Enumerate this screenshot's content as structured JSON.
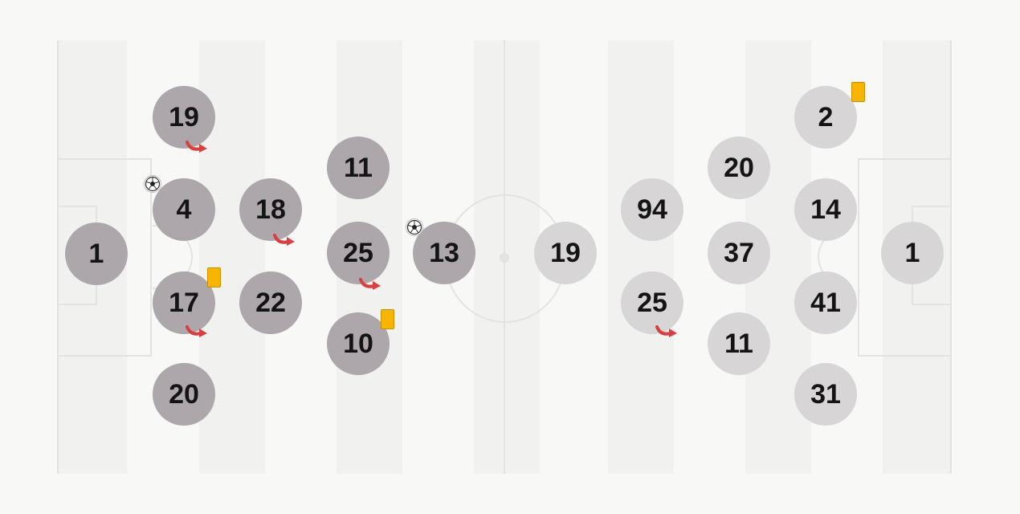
{
  "colors": {
    "home": "#ada6ab",
    "away": "#d7d5d6",
    "card": "#f7b500",
    "sub_arrow": "#e0393b",
    "pitch_stripe": "#f1f1f0",
    "pitch_line": "#e3e3e2"
  },
  "icons": {
    "card": "yellow-card-icon",
    "goal": "soccer-ball-icon",
    "substitution": "substitution-arrow-icon"
  },
  "home_team": {
    "players": [
      {
        "id": "h-1",
        "number": "1"
      },
      {
        "id": "h-19",
        "number": "19",
        "substituted": true
      },
      {
        "id": "h-4",
        "number": "4",
        "goal": true
      },
      {
        "id": "h-17",
        "number": "17",
        "substituted": true,
        "yellow_card": true
      },
      {
        "id": "h-20",
        "number": "20"
      },
      {
        "id": "h-18",
        "number": "18",
        "substituted": true
      },
      {
        "id": "h-22",
        "number": "22"
      },
      {
        "id": "h-11",
        "number": "11"
      },
      {
        "id": "h-25",
        "number": "25",
        "substituted": true
      },
      {
        "id": "h-10",
        "number": "10",
        "yellow_card": true
      },
      {
        "id": "h-13",
        "number": "13",
        "goal": true
      }
    ]
  },
  "away_team": {
    "players": [
      {
        "id": "a-19",
        "number": "19"
      },
      {
        "id": "a-94",
        "number": "94"
      },
      {
        "id": "a-25",
        "number": "25",
        "substituted": true
      },
      {
        "id": "a-20",
        "number": "20"
      },
      {
        "id": "a-37",
        "number": "37"
      },
      {
        "id": "a-11",
        "number": "11"
      },
      {
        "id": "a-2",
        "number": "2",
        "yellow_card": true
      },
      {
        "id": "a-14",
        "number": "14"
      },
      {
        "id": "a-41",
        "number": "41"
      },
      {
        "id": "a-31",
        "number": "31"
      },
      {
        "id": "a-1",
        "number": "1"
      }
    ]
  }
}
